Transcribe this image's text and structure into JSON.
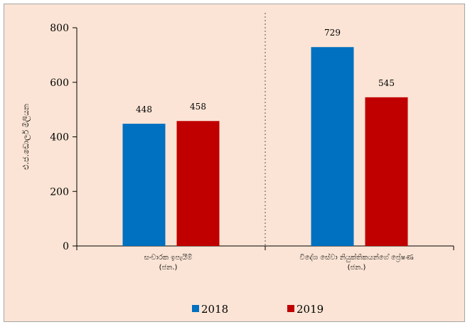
{
  "chart_data": {
    "type": "bar",
    "categories": [
      [
        "සංචාරක ඉපැයීම්",
        "(ජන.)"
      ],
      [
        "විදේශ සේවා නියුක්තිකයන්ගේ ප්‍රේෂණ",
        "(ජන.)"
      ]
    ],
    "series": [
      {
        "name": "2018",
        "color": "#0070c0",
        "values": [
          448,
          729
        ]
      },
      {
        "name": "2019",
        "color": "#c00000",
        "values": [
          458,
          545
        ]
      }
    ],
    "ylabel": "එ.ජ.ඩොලර් මිලියන",
    "ylim": [
      0,
      800
    ],
    "yticks": [
      0,
      200,
      400,
      600,
      800
    ],
    "grid": false,
    "legend": "bottom",
    "separator": "dotted"
  }
}
